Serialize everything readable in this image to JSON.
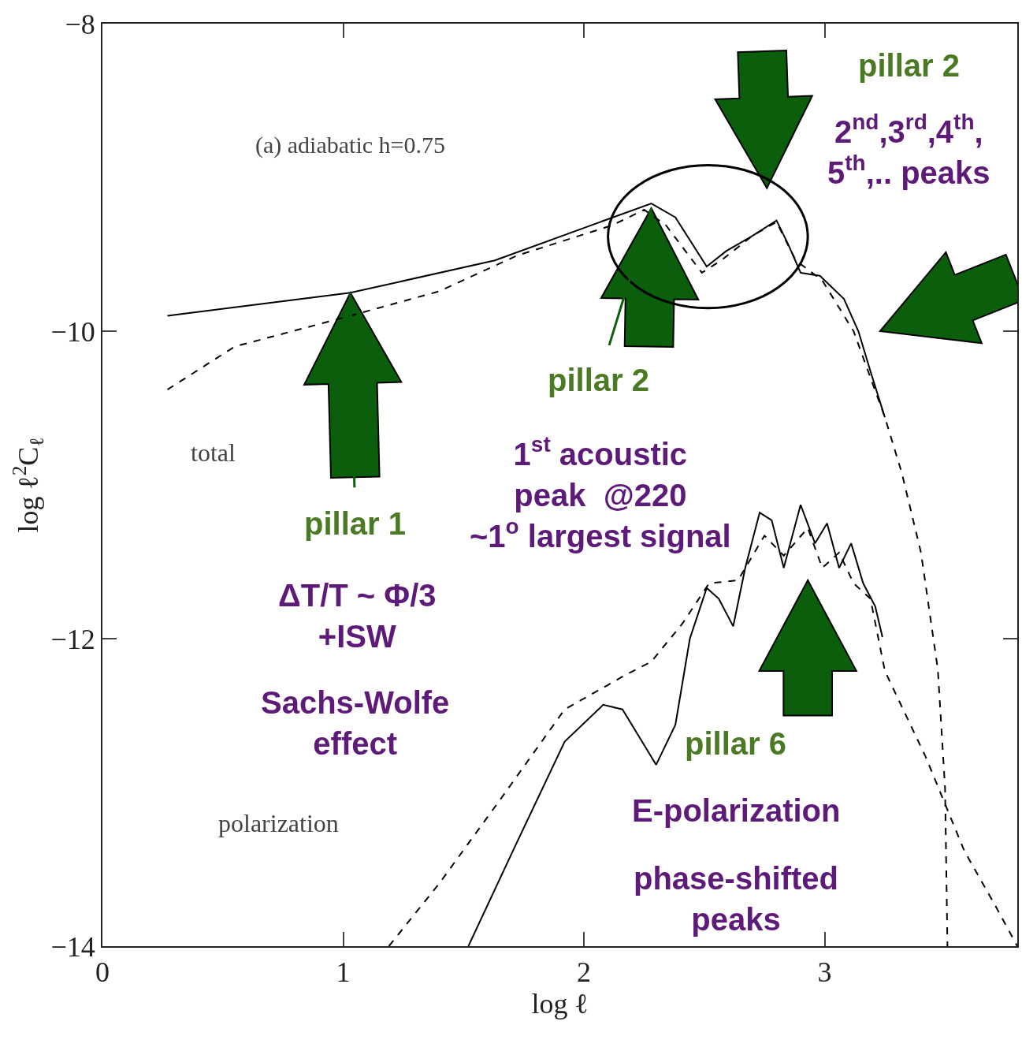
{
  "chart_data": {
    "type": "line",
    "xlabel": "log ℓ",
    "ylabel": "log ℓ$^{2}$C$_{ℓ}$",
    "xlim": [
      0,
      3.8
    ],
    "ylim": [
      -14,
      -8
    ],
    "xticks": [
      0,
      1,
      2,
      3
    ],
    "yticks": [
      -14,
      -12,
      -10,
      -8
    ],
    "grid": false,
    "marker": "none",
    "series": [
      {
        "color": "#000000",
        "line_style": "solid",
        "x": [
          0.27,
          1.03,
          1.63,
          2.12,
          2.28,
          2.38,
          2.51,
          2.59,
          2.7,
          2.8,
          2.85,
          2.9,
          2.98,
          3.08,
          3.14,
          3.19,
          3.25
        ],
        "values": [
          -9.9,
          -9.75,
          -9.54,
          -9.26,
          -9.17,
          -9.26,
          -9.58,
          -9.48,
          -9.38,
          -9.28,
          -9.44,
          -9.62,
          -9.64,
          -9.79,
          -10.0,
          -10.26,
          -10.56
        ]
      },
      {
        "color": "#000000",
        "line_style": "dashed",
        "x": [
          0.27,
          0.55,
          1.03,
          1.4,
          1.72,
          2.12,
          2.25,
          2.34,
          2.49,
          2.57,
          2.7,
          2.8,
          2.88,
          2.99,
          3.12,
          3.25,
          3.32,
          3.4,
          3.47,
          3.5,
          3.51
        ],
        "values": [
          -10.38,
          -10.1,
          -9.9,
          -9.74,
          -9.51,
          -9.31,
          -9.21,
          -9.31,
          -9.62,
          -9.54,
          -9.38,
          -9.29,
          -9.54,
          -9.67,
          -10.0,
          -10.56,
          -10.92,
          -11.44,
          -12.2,
          -12.97,
          -14.0
        ]
      },
      {
        "color": "#000000",
        "line_style": "solid",
        "x": [
          1.52,
          1.72,
          1.92,
          2.08,
          2.16,
          2.23,
          2.3,
          2.38,
          2.44,
          2.51,
          2.56,
          2.62,
          2.67,
          2.73,
          2.78,
          2.83,
          2.9,
          2.96,
          3.01,
          3.06,
          3.11,
          3.16,
          3.21,
          3.24
        ],
        "values": [
          -14.0,
          -13.33,
          -12.67,
          -12.43,
          -12.46,
          -12.64,
          -12.82,
          -12.56,
          -12.0,
          -11.67,
          -11.74,
          -11.92,
          -11.54,
          -11.18,
          -11.23,
          -11.54,
          -11.13,
          -11.38,
          -11.25,
          -11.54,
          -11.38,
          -11.64,
          -11.79,
          -11.99
        ]
      },
      {
        "color": "#000000",
        "line_style": "dashed",
        "x": [
          1.19,
          1.4,
          1.66,
          1.92,
          2.18,
          2.28,
          2.41,
          2.52,
          2.64,
          2.75,
          2.83,
          2.93,
          2.99,
          3.06,
          3.12,
          3.19,
          3.25,
          3.42,
          3.58,
          3.71,
          3.8
        ],
        "values": [
          -14.0,
          -13.59,
          -13.03,
          -12.46,
          -12.23,
          -12.15,
          -11.9,
          -11.64,
          -11.62,
          -11.33,
          -11.46,
          -11.28,
          -11.54,
          -11.44,
          -11.64,
          -11.74,
          -12.21,
          -12.77,
          -13.38,
          -13.74,
          -14.0
        ]
      }
    ],
    "annotations": [
      "(a) adiabatic h=0.75",
      "pillar 2",
      "2$^{nd}$,3$^{rd}$,4$^{th}$,\n5$^{th}$,.. peaks",
      "total",
      {
        "text": "pillar 2",
        "x": 2.28,
        "y": -9.2
      },
      "1$^{st}$ acoustic\npeak  @220\n~1$^{o}$ largest signal",
      {
        "text": "pillar 1",
        "x": 1.03,
        "y": -9.75
      },
      "ΔT/T ~ Φ/3\n+ISW",
      "Sachs-Wolfe\neffect",
      "pillar 6",
      "polarization",
      "E-polarization",
      "phase-shifted\npeaks"
    ]
  }
}
